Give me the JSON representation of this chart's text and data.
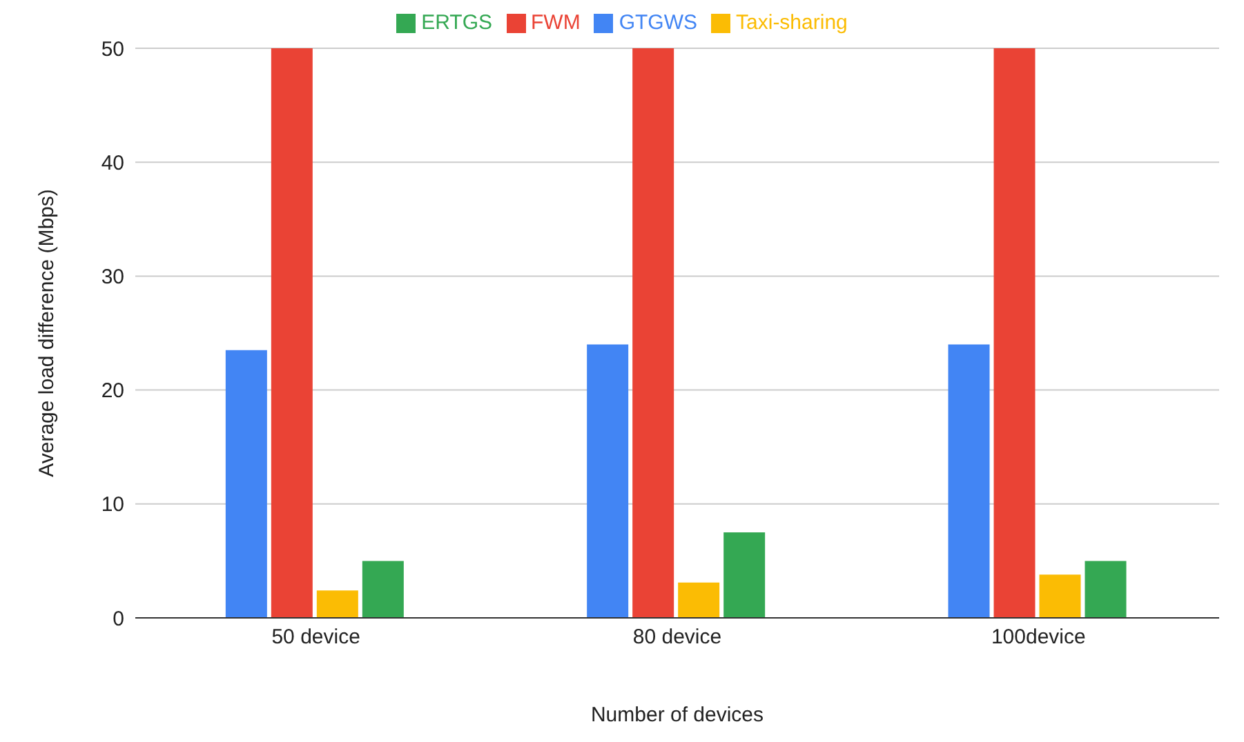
{
  "chart_data": {
    "type": "bar",
    "xlabel": "Number of devices",
    "ylabel": "Average load difference (Mbps)",
    "categories": [
      "50 device",
      "80 device",
      "100device"
    ],
    "series": [
      {
        "name": "GTGWS",
        "color": "#4285f4",
        "values": [
          23.5,
          24,
          24
        ]
      },
      {
        "name": "FWM",
        "color": "#ea4335",
        "values": [
          50,
          50,
          50
        ]
      },
      {
        "name": "Taxi-sharing",
        "color": "#fbbc04",
        "values": [
          2.4,
          3.1,
          3.8
        ]
      },
      {
        "name": "ERTGS",
        "color": "#34a853",
        "values": [
          5,
          7.5,
          5
        ]
      }
    ],
    "ylim": [
      0,
      50
    ],
    "yticks": [
      0,
      10,
      20,
      30,
      40,
      50
    ],
    "grid": "y",
    "legend": "top"
  }
}
